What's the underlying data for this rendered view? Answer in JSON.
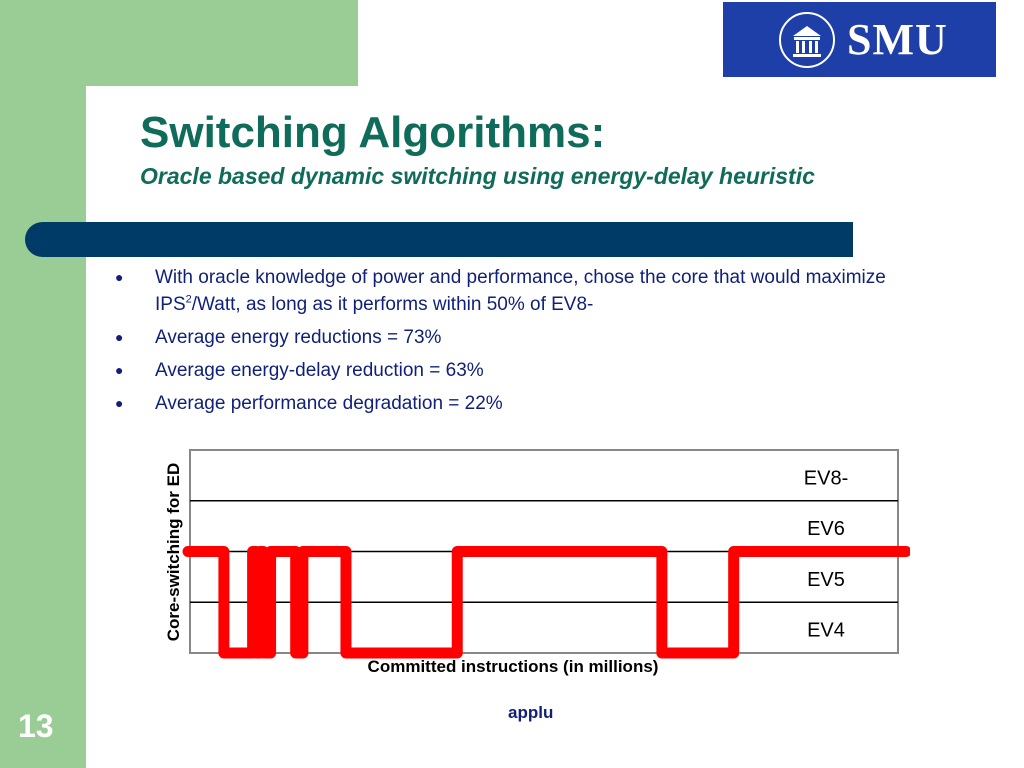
{
  "logo": {
    "text": "SMU"
  },
  "slide": {
    "title": "Switching Algorithms:",
    "subtitle": "Oracle based dynamic switching using energy-delay heuristic",
    "bullets": [
      {
        "pre": "With oracle knowledge of power and performance, chose the core that would maximize IPS",
        "sup": "2",
        "post": "/Watt, as long as it performs within 50% of EV8-"
      },
      {
        "text": "Average energy reductions = 73%"
      },
      {
        "text": "Average energy-delay reduction = 63%"
      },
      {
        "text": "Average performance degradation = 22%"
      }
    ],
    "caption": "applu",
    "page_number": "13"
  },
  "chart_data": {
    "type": "line",
    "xlabel": "Committed instructions (in millions)",
    "ylabel": "Core-switching for ED",
    "categories": [
      "EV8-",
      "EV6",
      "EV5",
      "EV4"
    ],
    "x_relative": [
      0,
      0.05,
      0.09,
      0.095,
      0.1,
      0.105,
      0.115,
      0.15,
      0.16,
      0.22,
      0.375,
      0.66,
      0.76,
      1
    ],
    "core_series": [
      "EV6",
      "EV4",
      "EV6",
      "EV4",
      "EV6",
      "EV4",
      "EV6",
      "EV4",
      "EV6",
      "EV4",
      "EV6",
      "EV4",
      "EV6"
    ],
    "colors": {
      "series": "#ff0000",
      "grid": "#000000"
    }
  }
}
